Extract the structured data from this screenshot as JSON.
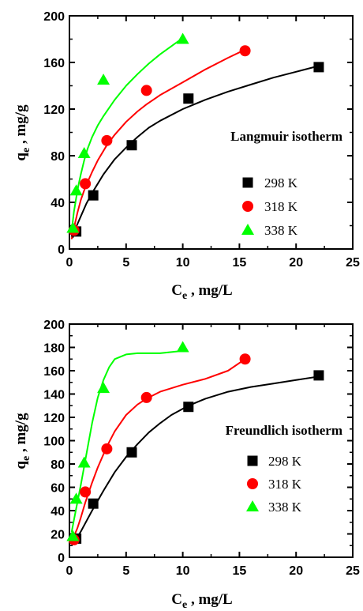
{
  "chart_data": [
    {
      "type": "scatter",
      "annotation": "Langmuir isotherm",
      "xlabel": {
        "main": "C",
        "sub": "e",
        "rest": " , mg/L"
      },
      "ylabel": {
        "main": "q",
        "sub": "e",
        "rest": " , mg/g"
      },
      "xlim": [
        0,
        25
      ],
      "ylim": [
        0,
        200
      ],
      "xticks": [
        0,
        5,
        10,
        15,
        20,
        25
      ],
      "yticks": [
        0,
        40,
        80,
        120,
        160,
        200
      ],
      "legend_position": "center-right",
      "series": [
        {
          "name": "298 K",
          "marker": "square",
          "color": "#000000",
          "x": [
            0.6,
            2.1,
            5.5,
            10.5,
            22.0
          ],
          "y": [
            15,
            46,
            89,
            129,
            156
          ],
          "fit_x": [
            0.3,
            0.6,
            1,
            1.5,
            2,
            3,
            4,
            5,
            6,
            7,
            8,
            10,
            12,
            14,
            16,
            18,
            20,
            22
          ],
          "fit_y": [
            10,
            19,
            28,
            39,
            48,
            64,
            77,
            87,
            96,
            104,
            110,
            120,
            128,
            135,
            141,
            147,
            152,
            157
          ]
        },
        {
          "name": "318 K",
          "marker": "circle",
          "color": "#ff0000",
          "x": [
            0.4,
            1.4,
            3.3,
            6.8,
            15.5
          ],
          "y": [
            16,
            56,
            93,
            136,
            170
          ],
          "fit_x": [
            0.2,
            0.4,
            0.7,
            1,
            1.4,
            2,
            2.5,
            3.3,
            4,
            5,
            6,
            6.8,
            8,
            10,
            12,
            14,
            15.5
          ],
          "fit_y": [
            9,
            18,
            31,
            42,
            53,
            66,
            76,
            89,
            98,
            109,
            118,
            124,
            132,
            143,
            154,
            164,
            171
          ]
        },
        {
          "name": "338 K",
          "marker": "triangle",
          "color": "#00ff00",
          "x": [
            0.3,
            0.6,
            1.3,
            3.0,
            10.0
          ],
          "y": [
            18,
            50,
            82,
            145,
            180
          ],
          "fit_x": [
            0.2,
            0.4,
            0.6,
            0.8,
            1,
            1.3,
            1.6,
            2,
            2.5,
            3,
            4,
            5,
            6,
            7,
            8,
            9,
            10
          ],
          "fit_y": [
            16,
            32,
            44,
            55,
            64,
            76,
            86,
            96,
            106,
            114,
            128,
            140,
            150,
            159,
            167,
            174,
            181
          ]
        }
      ]
    },
    {
      "type": "scatter",
      "annotation": "Freundlich isotherm",
      "xlabel": {
        "main": "C",
        "sub": "e",
        "rest": " , mg/L"
      },
      "ylabel": {
        "main": "q",
        "sub": "e",
        "rest": " , mg/g"
      },
      "xlim": [
        0,
        25
      ],
      "ylim": [
        0,
        200
      ],
      "xticks": [
        0,
        5,
        10,
        15,
        20,
        25
      ],
      "yticks": [
        0,
        20,
        40,
        60,
        80,
        100,
        120,
        140,
        160,
        180,
        200
      ],
      "legend_position": "center-right",
      "series": [
        {
          "name": "298 K",
          "marker": "square",
          "color": "#000000",
          "x": [
            0.6,
            2.1,
            5.5,
            10.5,
            22.0
          ],
          "y": [
            16,
            46,
            90,
            129,
            156
          ],
          "fit_x": [
            0.3,
            0.6,
            1,
            1.5,
            2,
            3,
            4,
            5,
            6,
            7,
            8,
            9,
            10.5,
            12,
            14,
            16,
            18,
            20,
            22
          ],
          "fit_y": [
            12,
            16,
            22,
            31,
            40,
            57,
            73,
            86,
            97,
            107,
            115,
            122,
            130,
            136,
            142,
            146,
            149,
            152,
            155
          ]
        },
        {
          "name": "318 K",
          "marker": "circle",
          "color": "#ff0000",
          "x": [
            0.4,
            1.4,
            3.3,
            6.8,
            15.5
          ],
          "y": [
            15,
            56,
            93,
            137,
            170
          ],
          "fit_x": [
            0.2,
            0.4,
            0.7,
            1,
            1.4,
            2,
            2.5,
            3.3,
            4,
            5,
            6,
            6.8,
            8,
            10,
            12,
            14,
            15.5
          ],
          "fit_y": [
            15,
            18,
            25,
            34,
            47,
            64,
            77,
            95,
            108,
            122,
            131,
            136,
            142,
            148,
            153,
            160,
            170
          ]
        },
        {
          "name": "338 K",
          "marker": "triangle",
          "color": "#00ff00",
          "x": [
            0.3,
            0.6,
            1.3,
            3.0,
            10.0
          ],
          "y": [
            18,
            50,
            81,
            145,
            180
          ],
          "fit_x": [
            0.2,
            0.4,
            0.6,
            0.8,
            1,
            1.3,
            1.6,
            2,
            2.5,
            3,
            3.5,
            4,
            5,
            6,
            7,
            8,
            9,
            10
          ],
          "fit_y": [
            22,
            32,
            42,
            52,
            62,
            78,
            94,
            115,
            137,
            152,
            163,
            170,
            174,
            175,
            175,
            175,
            176,
            177
          ]
        }
      ]
    }
  ]
}
